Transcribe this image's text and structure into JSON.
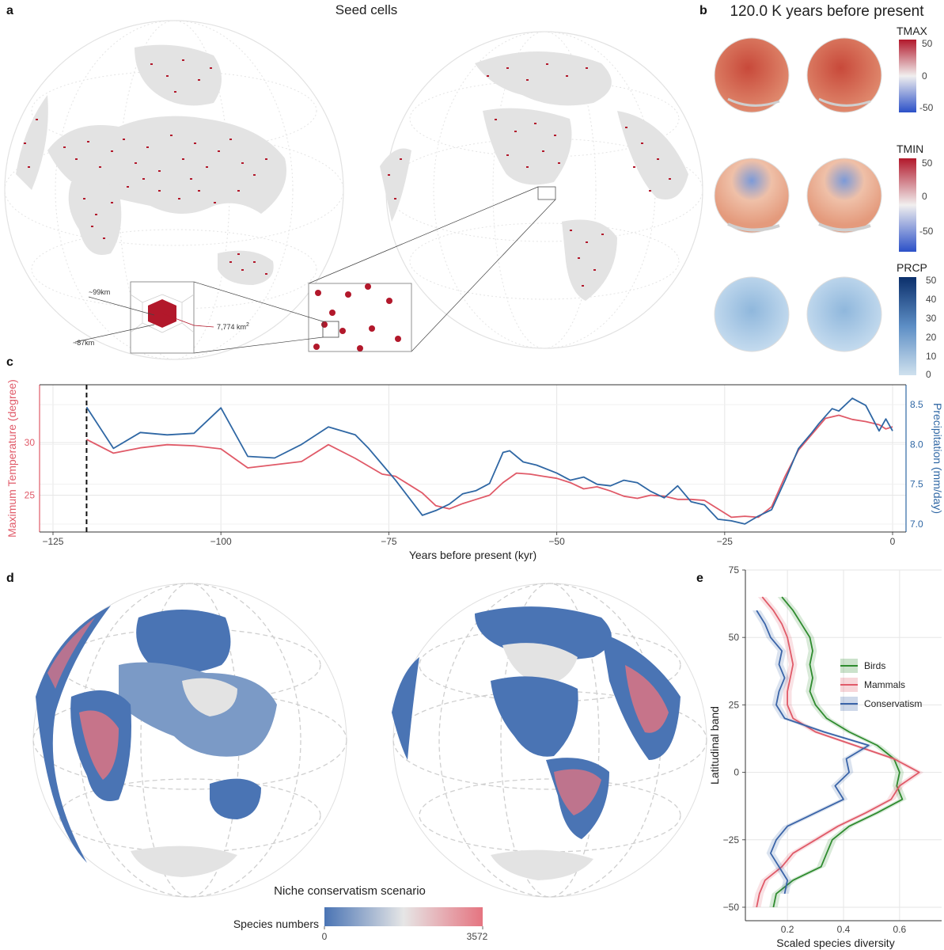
{
  "panels": {
    "a": {
      "label": "a",
      "title": "Seed cells",
      "inset_labels": [
        "~99km",
        "~87km",
        "7,774 km"
      ],
      "inset_area_sup": "2"
    },
    "b": {
      "label": "b",
      "title": "120.0 K years before present",
      "legends": [
        {
          "name": "TMAX",
          "ticks": [
            "50",
            "0",
            "-50"
          ]
        },
        {
          "name": "TMIN",
          "ticks": [
            "50",
            "0",
            "-50"
          ]
        },
        {
          "name": "PRCP",
          "ticks": [
            "50",
            "40",
            "30",
            "20",
            "10",
            "0"
          ]
        }
      ]
    },
    "c": {
      "label": "c"
    },
    "d": {
      "label": "d",
      "scenario_title": "Niche conservatism scenario",
      "legend_label": "Species numbers",
      "legend_min": "0",
      "legend_max": "3572"
    },
    "e": {
      "label": "e"
    }
  },
  "colors": {
    "seed_red": "#b2182b",
    "land_grey": "#e3e3e3",
    "temp_red": "#d6604d",
    "temp_line": "#e05a68",
    "precip_blue": "#2f67a4",
    "birds": "#2e8b2e",
    "mammals": "#e05a68",
    "conservatism": "#3a64a8",
    "diverge_low": "#4a74b4",
    "diverge_mid": "#e6e6e6",
    "diverge_high": "#e57480"
  },
  "chart_data": [
    {
      "id": "c",
      "type": "line",
      "xlabel": "Years before present (kyr)",
      "ylabel": "Maximum Temperature (degree)",
      "y2label": "Precipitation (mm/day)",
      "xlim": [
        -127,
        2
      ],
      "ylim": [
        21.5,
        35.5
      ],
      "y2lim": [
        6.9,
        8.75
      ],
      "xticks": [
        -125,
        -100,
        -75,
        -50,
        -25,
        0
      ],
      "yticks": [
        25,
        30
      ],
      "y2ticks": [
        7.0,
        7.5,
        8.0,
        8.5
      ],
      "vline_x": -120,
      "grid": true,
      "series": [
        {
          "name": "Maximum Temperature",
          "axis": "left",
          "x": [
            -120,
            -116,
            -112,
            -108,
            -104,
            -100,
            -96,
            -92,
            -88,
            -84,
            -80,
            -76,
            -74,
            -72,
            -70,
            -68,
            -66,
            -64,
            -62,
            -60,
            -58,
            -56,
            -54,
            -52,
            -50,
            -48,
            -46,
            -44,
            -42,
            -40,
            -38,
            -36,
            -34,
            -32,
            -30,
            -28,
            -26,
            -24,
            -22,
            -20,
            -18,
            -16,
            -14,
            -12,
            -10,
            -8,
            -6,
            -4,
            -2,
            -1,
            0
          ],
          "values": [
            30.3,
            29.0,
            29.5,
            29.8,
            29.7,
            29.4,
            27.6,
            27.9,
            28.2,
            29.8,
            28.5,
            27.0,
            26.8,
            26.0,
            25.2,
            24.0,
            23.7,
            24.2,
            24.6,
            25.0,
            26.2,
            27.1,
            27.0,
            26.8,
            26.6,
            26.2,
            25.6,
            25.8,
            25.4,
            24.9,
            24.7,
            25.0,
            24.9,
            24.6,
            24.6,
            24.5,
            23.7,
            22.9,
            23.0,
            22.9,
            23.9,
            26.8,
            29.3,
            30.8,
            32.3,
            32.6,
            32.2,
            32.0,
            31.7,
            31.3,
            31.5
          ]
        },
        {
          "name": "Precipitation",
          "axis": "right",
          "x": [
            -120,
            -116,
            -112,
            -108,
            -104,
            -100,
            -96,
            -92,
            -88,
            -84,
            -80,
            -78,
            -76,
            -74,
            -72,
            -70,
            -68,
            -66,
            -64,
            -62,
            -60,
            -58,
            -57,
            -55,
            -53,
            -50,
            -48,
            -46,
            -44,
            -42,
            -40,
            -38,
            -36,
            -34,
            -32,
            -30,
            -28,
            -26,
            -24,
            -22,
            -20,
            -18,
            -16,
            -14,
            -12,
            -11,
            -9,
            -8,
            -6,
            -4,
            -2,
            -1,
            0
          ],
          "values": [
            8.47,
            7.95,
            8.15,
            8.12,
            8.14,
            8.46,
            7.85,
            7.83,
            8.0,
            8.22,
            8.12,
            7.95,
            7.75,
            7.55,
            7.33,
            7.11,
            7.17,
            7.25,
            7.38,
            7.42,
            7.51,
            7.9,
            7.92,
            7.78,
            7.74,
            7.64,
            7.55,
            7.59,
            7.5,
            7.48,
            7.55,
            7.52,
            7.41,
            7.33,
            7.48,
            7.28,
            7.24,
            7.06,
            7.04,
            7.0,
            7.1,
            7.18,
            7.55,
            7.95,
            8.15,
            8.26,
            8.45,
            8.42,
            8.58,
            8.49,
            8.17,
            8.32,
            8.17
          ]
        }
      ]
    },
    {
      "id": "e",
      "type": "line",
      "xlabel": "Scaled species diversity",
      "ylabel": "Latitudinal band",
      "xlim": [
        0.05,
        0.75
      ],
      "ylim": [
        -55,
        75
      ],
      "xticks": [
        0.2,
        0.4,
        0.6
      ],
      "yticks": [
        -50,
        -25,
        0,
        25,
        50,
        75
      ],
      "legend_position": "right",
      "grid": true,
      "series": [
        {
          "name": "Birds",
          "y": [
            65,
            60,
            55,
            50,
            45,
            40,
            35,
            30,
            25,
            20,
            15,
            10,
            5,
            0,
            -5,
            -10,
            -15,
            -20,
            -25,
            -30,
            -35,
            -40,
            -45,
            -50
          ],
          "values": [
            0.18,
            0.22,
            0.25,
            0.28,
            0.29,
            0.28,
            0.29,
            0.28,
            0.3,
            0.34,
            0.42,
            0.52,
            0.58,
            0.6,
            0.59,
            0.61,
            0.52,
            0.42,
            0.36,
            0.34,
            0.32,
            0.22,
            0.16,
            0.15
          ]
        },
        {
          "name": "Mammals",
          "y": [
            65,
            60,
            55,
            50,
            45,
            40,
            35,
            30,
            25,
            20,
            15,
            10,
            5,
            0,
            -5,
            -10,
            -15,
            -20,
            -25,
            -30,
            -35,
            -40,
            -45,
            -50
          ],
          "values": [
            0.11,
            0.15,
            0.18,
            0.2,
            0.21,
            0.22,
            0.21,
            0.2,
            0.2,
            0.22,
            0.3,
            0.44,
            0.58,
            0.67,
            0.6,
            0.57,
            0.48,
            0.38,
            0.3,
            0.22,
            0.18,
            0.12,
            0.1,
            0.09
          ]
        },
        {
          "name": "Conservatism",
          "y": [
            60,
            55,
            50,
            45,
            40,
            35,
            30,
            25,
            20,
            15,
            10,
            5,
            0,
            -5,
            -10,
            -15,
            -20,
            -25,
            -30,
            -35,
            -40,
            -45
          ],
          "values": [
            0.09,
            0.12,
            0.14,
            0.18,
            0.17,
            0.19,
            0.17,
            0.16,
            0.19,
            0.33,
            0.49,
            0.41,
            0.42,
            0.37,
            0.4,
            0.3,
            0.2,
            0.16,
            0.14,
            0.17,
            0.2,
            0.19
          ]
        }
      ]
    }
  ]
}
